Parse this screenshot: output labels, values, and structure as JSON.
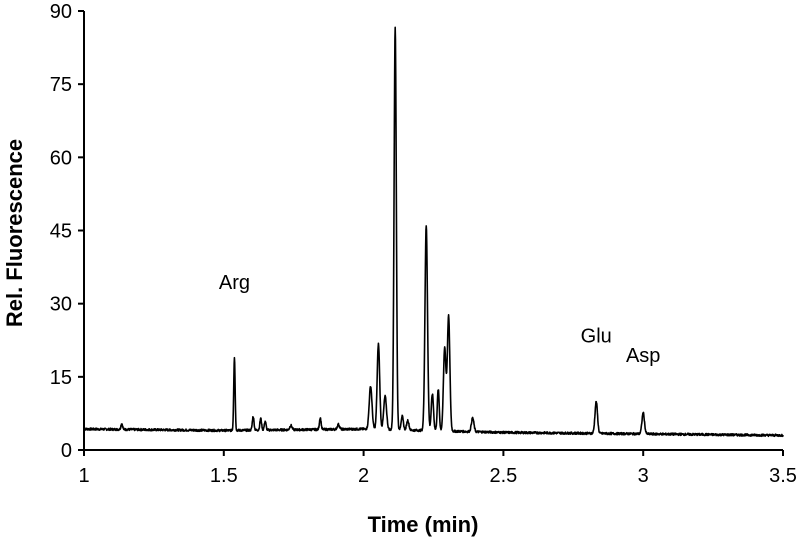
{
  "chart_data": {
    "type": "line",
    "xlabel": "Time (min)",
    "ylabel": "Rel. Fluorescence",
    "xlim": [
      1,
      3.5
    ],
    "ylim": [
      0,
      90
    ],
    "xticks": [
      "1",
      "1.5",
      "2",
      "2.5",
      "3",
      "3.5"
    ],
    "yticks": [
      "0",
      "15",
      "30",
      "45",
      "60",
      "75",
      "90"
    ],
    "grid": false,
    "legend": "none",
    "line_color": "#000000",
    "baseline": [
      [
        1,
        4.3
      ],
      [
        1.5,
        4.0
      ],
      [
        2.0,
        4.3
      ],
      [
        2.5,
        3.6
      ],
      [
        3.0,
        3.3
      ],
      [
        3.5,
        3.0
      ]
    ],
    "peaks": [
      {
        "x": 1.135,
        "height": 1.2,
        "width": 0.003
      },
      {
        "x": 1.538,
        "height": 15.0,
        "width": 0.0025
      },
      {
        "x": 1.605,
        "height": 2.8,
        "width": 0.003
      },
      {
        "x": 1.632,
        "height": 2.4,
        "width": 0.003
      },
      {
        "x": 1.648,
        "height": 1.8,
        "width": 0.003
      },
      {
        "x": 1.74,
        "height": 0.9,
        "width": 0.004
      },
      {
        "x": 1.845,
        "height": 2.4,
        "width": 0.003
      },
      {
        "x": 1.91,
        "height": 1.0,
        "width": 0.004
      },
      {
        "x": 2.025,
        "height": 8.8,
        "width": 0.005
      },
      {
        "x": 2.053,
        "height": 17.5,
        "width": 0.0045
      },
      {
        "x": 2.077,
        "height": 6.8,
        "width": 0.005
      },
      {
        "x": 2.113,
        "height": 82.5,
        "width": 0.004
      },
      {
        "x": 2.138,
        "height": 2.8,
        "width": 0.004
      },
      {
        "x": 2.158,
        "height": 2.0,
        "width": 0.004
      },
      {
        "x": 2.224,
        "height": 42.0,
        "width": 0.0045
      },
      {
        "x": 2.246,
        "height": 7.5,
        "width": 0.004
      },
      {
        "x": 2.267,
        "height": 8.5,
        "width": 0.0035
      },
      {
        "x": 2.29,
        "height": 17.0,
        "width": 0.0045
      },
      {
        "x": 2.304,
        "height": 23.5,
        "width": 0.0045
      },
      {
        "x": 2.39,
        "height": 2.8,
        "width": 0.0045
      },
      {
        "x": 2.832,
        "height": 6.5,
        "width": 0.0045
      },
      {
        "x": 3.0,
        "height": 4.3,
        "width": 0.0045
      }
    ],
    "annotations": [
      {
        "text": "Arg",
        "x": 1.538,
        "y": 33
      },
      {
        "text": "Glu",
        "x": 2.832,
        "y": 22
      },
      {
        "text": "Asp",
        "x": 3.0,
        "y": 18
      }
    ]
  }
}
